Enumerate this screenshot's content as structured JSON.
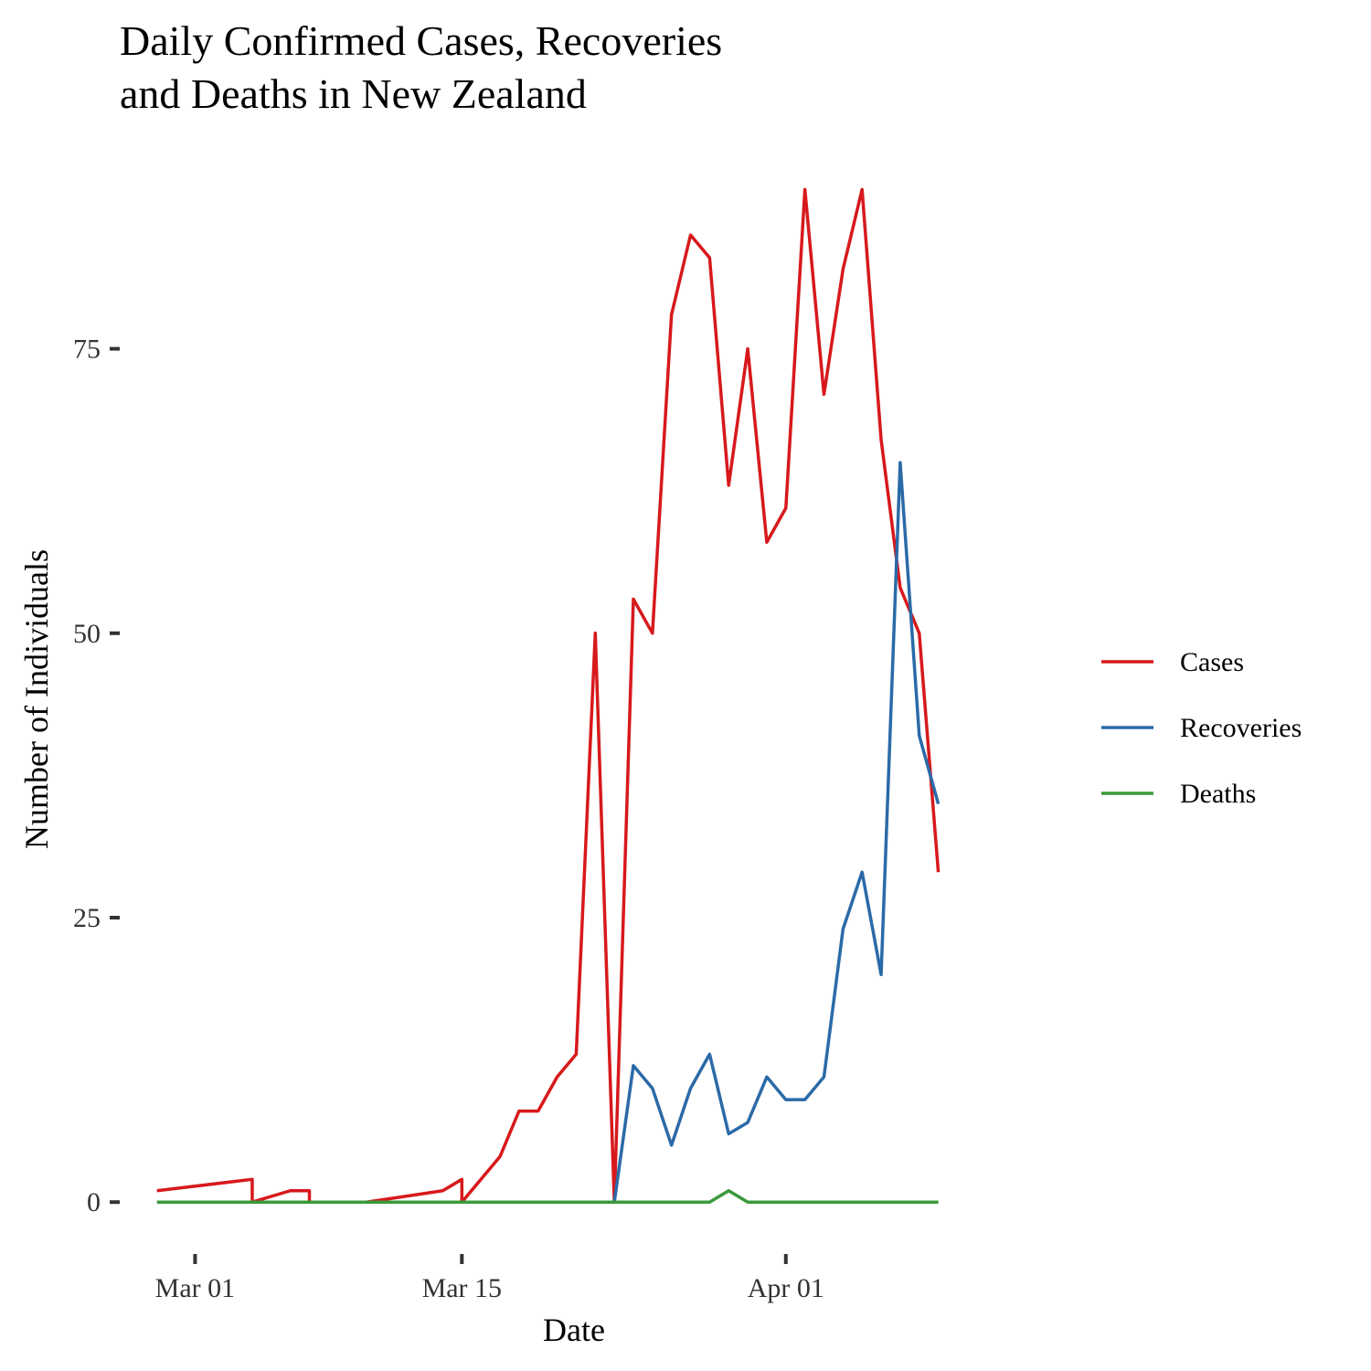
{
  "chart_data": {
    "type": "line",
    "title": [
      "Daily Confirmed Cases, Recoveries",
      "and Deaths in New Zealand"
    ],
    "xlabel": "Date",
    "ylabel": "Number of Individuals",
    "x_ticks": [
      {
        "date": "2020-03-01",
        "label": "Mar 01"
      },
      {
        "date": "2020-03-15",
        "label": "Mar 15"
      },
      {
        "date": "2020-04-01",
        "label": "Apr 01"
      }
    ],
    "y_ticks": [
      0,
      25,
      50,
      75
    ],
    "xlim": [
      "2020-02-26",
      "2020-04-13"
    ],
    "ylim": [
      -4,
      92
    ],
    "grid": false,
    "legend_position": "right",
    "series": [
      {
        "name": "Cases",
        "color": "#d7191c",
        "points": [
          [
            "2020-02-28",
            1
          ],
          [
            "2020-03-04",
            2
          ],
          [
            "2020-03-04",
            0
          ],
          [
            "2020-03-06",
            1
          ],
          [
            "2020-03-07",
            1
          ],
          [
            "2020-03-07",
            0
          ],
          [
            "2020-03-10",
            0
          ],
          [
            "2020-03-14",
            1
          ],
          [
            "2020-03-15",
            2
          ],
          [
            "2020-03-15",
            0
          ],
          [
            "2020-03-17",
            4
          ],
          [
            "2020-03-18",
            8
          ],
          [
            "2020-03-19",
            8
          ],
          [
            "2020-03-20",
            11
          ],
          [
            "2020-03-21",
            13
          ],
          [
            "2020-03-22",
            50
          ],
          [
            "2020-03-23",
            0
          ],
          [
            "2020-03-24",
            53
          ],
          [
            "2020-03-25",
            50
          ],
          [
            "2020-03-26",
            78
          ],
          [
            "2020-03-27",
            85
          ],
          [
            "2020-03-28",
            83
          ],
          [
            "2020-03-29",
            63
          ],
          [
            "2020-03-30",
            75
          ],
          [
            "2020-03-31",
            58
          ],
          [
            "2020-04-01",
            61
          ],
          [
            "2020-04-02",
            89
          ],
          [
            "2020-04-03",
            71
          ],
          [
            "2020-04-04",
            82
          ],
          [
            "2020-04-05",
            89
          ],
          [
            "2020-04-06",
            67
          ],
          [
            "2020-04-07",
            54
          ],
          [
            "2020-04-08",
            50
          ],
          [
            "2020-04-09",
            29
          ]
        ]
      },
      {
        "name": "Recoveries",
        "color": "#2b6aa8",
        "points": [
          [
            "2020-03-23",
            0
          ],
          [
            "2020-03-24",
            12
          ],
          [
            "2020-03-25",
            10
          ],
          [
            "2020-03-26",
            5
          ],
          [
            "2020-03-27",
            10
          ],
          [
            "2020-03-28",
            13
          ],
          [
            "2020-03-29",
            6
          ],
          [
            "2020-03-30",
            7
          ],
          [
            "2020-03-31",
            11
          ],
          [
            "2020-04-01",
            9
          ],
          [
            "2020-04-02",
            9
          ],
          [
            "2020-04-03",
            11
          ],
          [
            "2020-04-04",
            24
          ],
          [
            "2020-04-05",
            29
          ],
          [
            "2020-04-06",
            20
          ],
          [
            "2020-04-07",
            65
          ],
          [
            "2020-04-08",
            41
          ],
          [
            "2020-04-09",
            35
          ]
        ]
      },
      {
        "name": "Deaths",
        "color": "#3a9a3a",
        "points": [
          [
            "2020-02-28",
            0
          ],
          [
            "2020-03-28",
            0
          ],
          [
            "2020-03-29",
            1
          ],
          [
            "2020-03-30",
            0
          ],
          [
            "2020-04-09",
            0
          ]
        ]
      }
    ]
  }
}
